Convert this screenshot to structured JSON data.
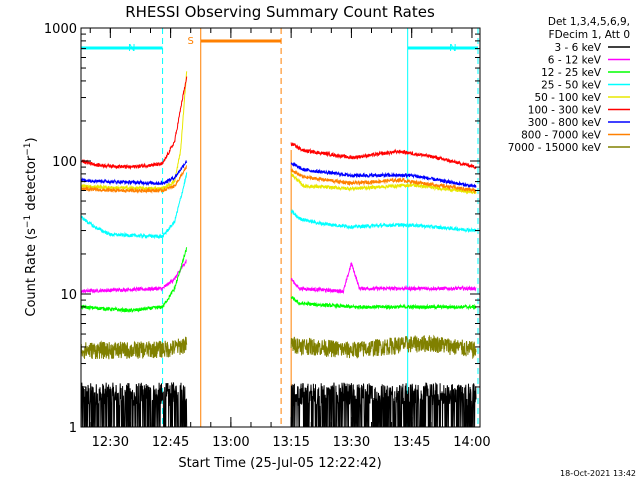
{
  "chart_data": {
    "type": "line",
    "title": "RHESSI Observing Summary Count Rates",
    "xlabel": "Start Time (25-Jul-05 12:22:42)",
    "ylabel": "Count Rate (s⁻¹ detector⁻¹)",
    "y_scale": "log",
    "ylim": [
      1,
      1000
    ],
    "y_ticks": [
      {
        "value": 1,
        "label": "1"
      },
      {
        "value": 10,
        "label": "10"
      },
      {
        "value": 100,
        "label": "100"
      },
      {
        "value": 1000,
        "label": "1000"
      }
    ],
    "xlim": [
      "12:22:42",
      "14:02:00"
    ],
    "x_ticks": [
      "12:30",
      "12:45",
      "13:00",
      "13:15",
      "13:30",
      "13:45",
      "14:00"
    ],
    "legend_header": [
      "Det 1,3,4,5,6,9,",
      "FDecim 1, Att 0"
    ],
    "legend_position": "right",
    "timestamp": "18-Oct-2021 13:42",
    "annotations": [
      {
        "label": "N",
        "type": "night",
        "start": "12:22:42",
        "end": "12:43:00",
        "color": "#00ffff"
      },
      {
        "label": "N",
        "type": "night",
        "start": "13:44:00",
        "end": "14:01:30",
        "color": "#00ffff"
      },
      {
        "label": "S",
        "type": "saa",
        "start": "12:52:30",
        "end": "13:12:30",
        "color": "#ff8000"
      }
    ],
    "data_gap": [
      "12:52:30",
      "13:15:00"
    ],
    "series": [
      {
        "name": "3 - 6 keV",
        "color": "#000000",
        "mode": "noisy",
        "segments": [
          {
            "x": [
              "12:22:42",
              "12:35",
              "12:45",
              "12:49"
            ],
            "y": [
              1.6,
              1.6,
              1.6,
              1.7
            ],
            "noise": 0.7
          },
          {
            "x": [
              "13:15",
              "13:30",
              "13:45",
              "14:01"
            ],
            "y": [
              1.6,
              1.6,
              1.6,
              1.6
            ],
            "noise": 0.7
          }
        ]
      },
      {
        "name": "6 - 12 keV",
        "color": "#ff00ff",
        "mode": "smooth",
        "segments": [
          {
            "x": [
              "12:22:42",
              "12:35",
              "12:43",
              "12:46",
              "12:49"
            ],
            "y": [
              10.5,
              10.8,
              11,
              13,
              18
            ]
          },
          {
            "x": [
              "13:15",
              "13:17",
              "13:28",
              "13:30",
              "13:32",
              "13:45",
              "14:01"
            ],
            "y": [
              13,
              11,
              10.5,
              17,
              11,
              11,
              11
            ]
          }
        ]
      },
      {
        "name": "12 - 25 keV",
        "color": "#00ff00",
        "mode": "smooth",
        "segments": [
          {
            "x": [
              "12:22:42",
              "12:35",
              "12:43",
              "12:46",
              "12:49"
            ],
            "y": [
              8,
              7.5,
              8,
              11,
              22
            ]
          },
          {
            "x": [
              "13:15",
              "13:17",
              "13:30",
              "13:45",
              "14:01"
            ],
            "y": [
              9.5,
              8.5,
              8,
              8,
              8
            ]
          }
        ]
      },
      {
        "name": "25 - 50 keV",
        "color": "#00ffff",
        "mode": "smooth",
        "segments": [
          {
            "x": [
              "12:22:42",
              "12:26",
              "12:30",
              "12:43",
              "12:46",
              "12:48",
              "12:49"
            ],
            "y": [
              38,
              32,
              28,
              27,
              35,
              60,
              80
            ]
          },
          {
            "x": [
              "13:15",
              "13:17",
              "13:22",
              "13:30",
              "13:40",
              "13:45",
              "14:01"
            ],
            "y": [
              42,
              37,
              34,
              32,
              33,
              33,
              30
            ]
          }
        ]
      },
      {
        "name": "50 - 100 keV",
        "color": "#e8e800",
        "mode": "smooth",
        "segments": [
          {
            "x": [
              "12:22:42",
              "12:30",
              "12:43",
              "12:46",
              "12:47.5",
              "12:49"
            ],
            "y": [
              65,
              63,
              62,
              70,
              120,
              480
            ]
          },
          {
            "x": [
              "13:15",
              "13:18",
              "13:30",
              "13:45",
              "14:01"
            ],
            "y": [
              80,
              65,
              62,
              66,
              58
            ]
          }
        ]
      },
      {
        "name": "100 - 300 keV",
        "color": "#ff0000",
        "mode": "smooth",
        "segments": [
          {
            "x": [
              "12:22:42",
              "12:27",
              "12:35",
              "12:43",
              "12:46",
              "12:48",
              "12:49"
            ],
            "y": [
              100,
              93,
              90,
              95,
              140,
              300,
              420
            ]
          },
          {
            "x": [
              "13:15",
              "13:18",
              "13:25",
              "13:30",
              "13:42",
              "13:50",
              "14:01"
            ],
            "y": [
              135,
              120,
              112,
              106,
              118,
              108,
              90
            ]
          }
        ]
      },
      {
        "name": "300 - 800 keV",
        "color": "#0000ff",
        "mode": "smooth",
        "segments": [
          {
            "x": [
              "12:22:42",
              "12:30",
              "12:43",
              "12:46",
              "12:49"
            ],
            "y": [
              72,
              70,
              68,
              75,
              100
            ]
          },
          {
            "x": [
              "13:15",
              "13:18",
              "13:30",
              "13:45",
              "14:01"
            ],
            "y": [
              96,
              86,
              78,
              78,
              64
            ]
          }
        ]
      },
      {
        "name": "800 - 7000 keV",
        "color": "#ff8000",
        "mode": "smooth",
        "segments": [
          {
            "x": [
              "12:22:42",
              "12:30",
              "12:43",
              "12:46",
              "12:49"
            ],
            "y": [
              62,
              60,
              60,
              65,
              90
            ]
          },
          {
            "x": [
              "13:15",
              "13:18",
              "13:30",
              "13:42",
              "14:01"
            ],
            "y": [
              85,
              76,
              68,
              72,
              60
            ]
          }
        ]
      },
      {
        "name": "7000 - 15000 keV",
        "color": "#808000",
        "mode": "noisy",
        "segments": [
          {
            "x": [
              "12:22:42",
              "12:35",
              "12:45",
              "12:49"
            ],
            "y": [
              3.8,
              3.8,
              3.9,
              4.2
            ],
            "noise": 0.3
          },
          {
            "x": [
              "13:15",
              "13:30",
              "13:43",
              "13:50",
              "14:01"
            ],
            "y": [
              4.2,
              3.8,
              4.2,
              4.3,
              3.8
            ],
            "noise": 0.3
          }
        ]
      }
    ]
  }
}
